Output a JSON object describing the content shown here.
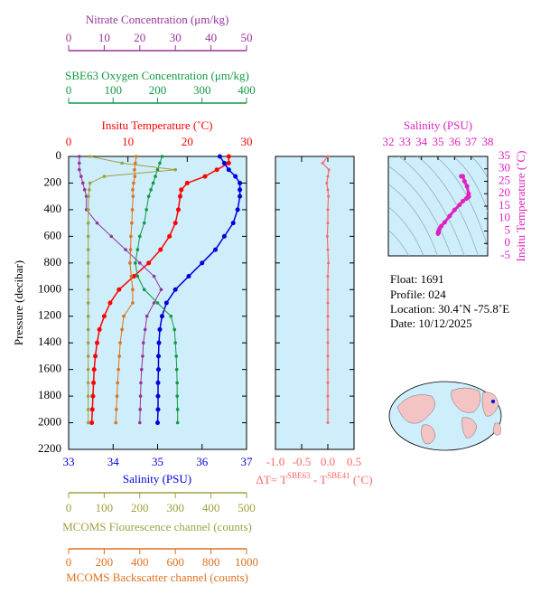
{
  "chart_data": [
    {
      "type": "profile",
      "ylabel": "Pressure (decibar)",
      "ylim": [
        0,
        2200
      ],
      "y_inverted": true,
      "yticks": [
        0,
        200,
        400,
        600,
        800,
        1000,
        1200,
        1400,
        1600,
        1800,
        2000,
        2200
      ],
      "pressure": [
        0,
        50,
        100,
        150,
        200,
        250,
        300,
        400,
        500,
        600,
        700,
        800,
        900,
        1000,
        1100,
        1200,
        1300,
        1400,
        1500,
        1600,
        1700,
        1800,
        1900,
        2000
      ],
      "x_axes": [
        {
          "label": "Insitu Temperature (˚C)",
          "color": "#ff0000",
          "xlim": [
            0,
            30
          ],
          "xticks": [
            0,
            10,
            20,
            30
          ]
        },
        {
          "label": "Salinity (PSU)",
          "color": "#0000dd",
          "xlim": [
            33,
            37
          ],
          "xticks": [
            33,
            34,
            35,
            36,
            37
          ]
        },
        {
          "label": "Nitrate Concentration (μm/kg)",
          "color": "#993399",
          "xlim": [
            0,
            50
          ],
          "xticks": [
            0,
            10,
            20,
            30,
            40,
            50
          ]
        },
        {
          "label": "SBE63 Oxygen Concentration (μm/kg)",
          "color": "#119944",
          "xlim": [
            0,
            400
          ],
          "xticks": [
            0,
            100,
            200,
            300,
            400
          ]
        },
        {
          "label": "MCOMS Flourescence channel (counts)",
          "color": "#a0a040",
          "xlim": [
            0,
            500
          ],
          "xticks": [
            0,
            100,
            200,
            300,
            400,
            500
          ]
        },
        {
          "label": "MCOMS Backscatter channel (counts)",
          "color": "#e07020",
          "xlim": [
            0,
            1000
          ],
          "xticks": [
            0,
            200,
            400,
            600,
            800,
            1000
          ]
        }
      ],
      "series": [
        {
          "axis": 0,
          "color": "#ff0000",
          "values": [
            27,
            27,
            25,
            23,
            20,
            19,
            18.8,
            18.5,
            18,
            17,
            15.5,
            13.5,
            11,
            8.5,
            7,
            6,
            5.2,
            4.8,
            4.5,
            4.3,
            4.2,
            4.1,
            4.0,
            3.9
          ]
        },
        {
          "axis": 1,
          "color": "#0000dd",
          "values": [
            36.4,
            36.5,
            36.6,
            36.75,
            36.85,
            36.85,
            36.85,
            36.8,
            36.7,
            36.5,
            36.3,
            36.0,
            35.7,
            35.4,
            35.2,
            35.1,
            35.05,
            35.03,
            35.02,
            35.02,
            35.01,
            35.01,
            35.01,
            35.0
          ]
        },
        {
          "axis": 2,
          "color": "#993399",
          "values": [
            3,
            3,
            3,
            3.5,
            4,
            4.5,
            5,
            5,
            8,
            12,
            16,
            20,
            24,
            26,
            24,
            22,
            21.5,
            21,
            20.8,
            20.5,
            20.3,
            20.2,
            20.1,
            20
          ]
        },
        {
          "axis": 3,
          "color": "#119944",
          "values": [
            210,
            205,
            200,
            195,
            190,
            185,
            180,
            175,
            170,
            160,
            155,
            150,
            155,
            170,
            200,
            230,
            238,
            240,
            242,
            243,
            244,
            244,
            245,
            245
          ]
        },
        {
          "axis": 4,
          "color": "#a0a040",
          "values": [
            60,
            150,
            300,
            100,
            60,
            58,
            56,
            55,
            55,
            55,
            55,
            55,
            55,
            55,
            55,
            55,
            55,
            55,
            55,
            55,
            55,
            55,
            55,
            55
          ]
        },
        {
          "axis": 5,
          "color": "#e07020",
          "values": [
            380,
            375,
            370,
            372,
            365,
            360,
            362,
            358,
            355,
            350,
            348,
            345,
            352,
            360,
            360,
            310,
            300,
            290,
            285,
            280,
            275,
            272,
            268,
            265
          ]
        }
      ]
    },
    {
      "type": "delta",
      "xlabel_parts": [
        "ΔT= T",
        "SBE63",
        " - T",
        "SBE41",
        " (˚C)"
      ],
      "color": "#ff6666",
      "xlim": [
        -1,
        0.5
      ],
      "xticks": [
        {
          "value": -1,
          "label": "-1.0"
        },
        {
          "value": -0.5,
          "label": "-0.5"
        },
        {
          "value": 0,
          "label": "0.0"
        },
        0.5
      ],
      "values": [
        0,
        -0.1,
        0.02,
        0,
        -0.02,
        0,
        0.01,
        0,
        0,
        -0.01,
        0,
        0.01,
        0,
        0,
        0,
        0,
        0,
        0,
        0,
        0,
        0,
        0,
        0,
        0
      ]
    },
    {
      "type": "ts",
      "xlabel": "Salinity (PSU)",
      "ylabel": "Insitu Temperature (˚C)",
      "color": "#e020c0",
      "xlim": [
        32,
        38
      ],
      "xticks": [
        32,
        33,
        34,
        35,
        36,
        37,
        38
      ],
      "ylim": [
        -5,
        35
      ],
      "yticks": [
        -5,
        0,
        5,
        10,
        15,
        20,
        25,
        30,
        35
      ]
    }
  ],
  "info": [
    "Float:  1691",
    "Profile:  024",
    "Location:  30.4˚N  -75.8˚E",
    "Date:  10/12/2025"
  ]
}
